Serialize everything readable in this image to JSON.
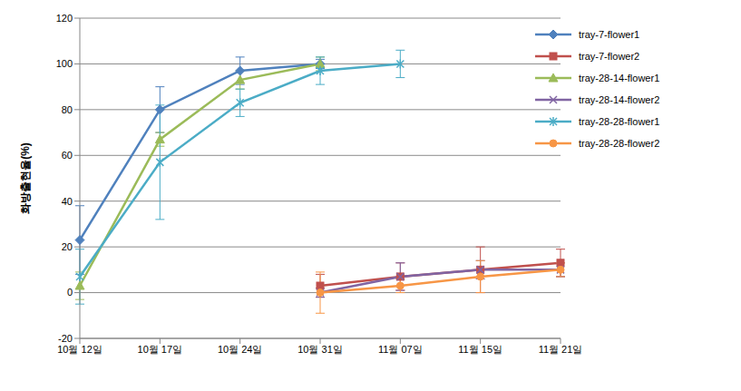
{
  "chart_data": {
    "type": "line",
    "y_label": "화방출현율(%)",
    "categories": [
      "10월 12일",
      "10월 17일",
      "10월 24일",
      "10월 31일",
      "11월 07일",
      "11월 15일",
      "11월 21일"
    ],
    "ylim": [
      -20,
      120
    ],
    "yticks": [
      -20,
      0,
      20,
      40,
      60,
      80,
      100,
      120
    ],
    "grid": true,
    "legend": "upper right",
    "series": [
      {
        "name": "tray-7-flower1",
        "color": "#4F81BD",
        "marker": "diamond",
        "values": [
          23,
          80,
          97,
          100,
          null,
          null,
          null
        ],
        "errors": [
          15,
          10,
          6,
          2,
          null,
          null,
          null
        ]
      },
      {
        "name": "tray-7-flower2",
        "color": "#C0504D",
        "marker": "square",
        "values": [
          null,
          null,
          null,
          3,
          7,
          10,
          13
        ],
        "errors": [
          null,
          null,
          null,
          5,
          6,
          10,
          6
        ]
      },
      {
        "name": "tray-28-14-flower1",
        "color": "#9BBB59",
        "marker": "triangle",
        "values": [
          3,
          67,
          93,
          100,
          null,
          null,
          null
        ],
        "errors": [
          6,
          3,
          4,
          3,
          null,
          null,
          null
        ]
      },
      {
        "name": "tray-28-14-flower2",
        "color": "#8064A2",
        "marker": "x",
        "values": [
          null,
          null,
          null,
          0,
          7,
          10,
          10
        ],
        "errors": [
          null,
          null,
          null,
          2,
          6,
          4,
          3
        ]
      },
      {
        "name": "tray-28-28-flower1",
        "color": "#4BACC6",
        "marker": "star",
        "values": [
          7,
          57,
          83,
          97,
          100,
          null,
          null
        ],
        "errors": [
          12,
          25,
          6,
          6,
          6,
          null,
          null
        ]
      },
      {
        "name": "tray-28-28-flower2",
        "color": "#F79646",
        "marker": "circle",
        "values": [
          null,
          null,
          null,
          0,
          3,
          7,
          10
        ],
        "errors": [
          null,
          null,
          null,
          9,
          3,
          7,
          3
        ]
      }
    ]
  }
}
